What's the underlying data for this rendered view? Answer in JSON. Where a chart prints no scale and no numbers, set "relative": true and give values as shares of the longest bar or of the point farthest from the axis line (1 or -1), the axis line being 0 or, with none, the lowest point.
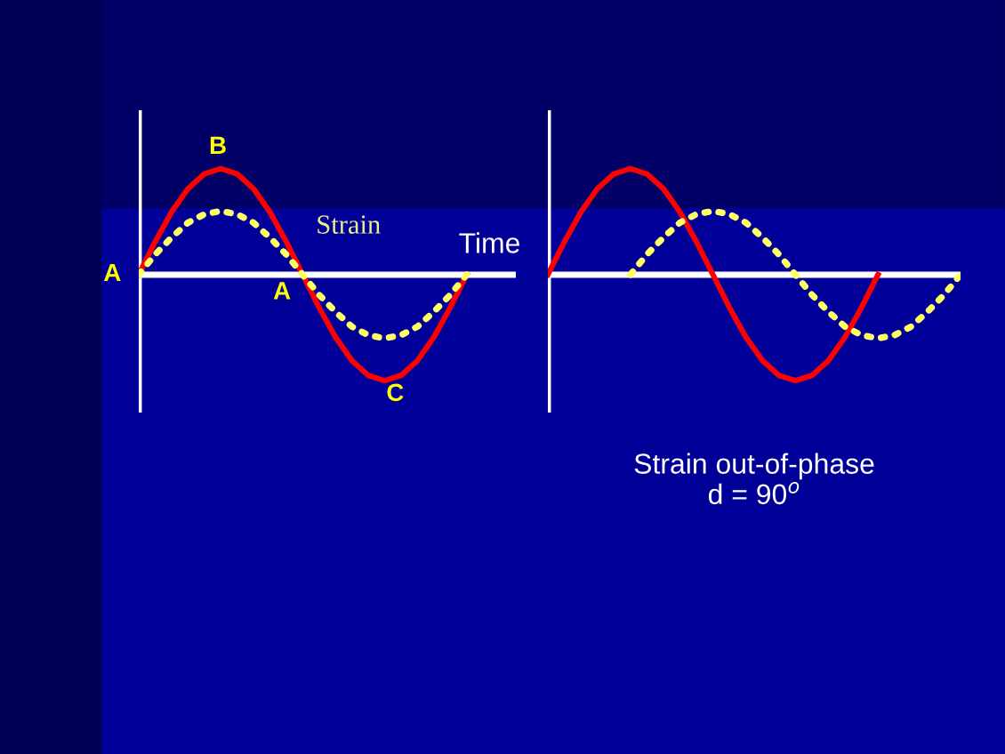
{
  "chart_data": [
    {
      "type": "line",
      "relative": true,
      "xlabel": "Time",
      "annotations": [
        "A",
        "B",
        "A",
        "C"
      ],
      "categories": [
        null,
        null,
        null,
        null,
        null,
        null,
        null,
        null,
        null,
        null,
        null,
        null,
        null,
        null,
        null,
        null,
        null,
        null,
        null,
        null,
        null,
        null,
        null,
        null
      ],
      "series": [
        {
          "color": "#ff0000",
          "line_style": "solid",
          "values": [
            0,
            0.31,
            0.59,
            0.81,
            0.95,
            1,
            0.95,
            0.81,
            0.59,
            0.31,
            0,
            -0.31,
            -0.59,
            -0.81,
            -0.95,
            -1,
            -0.95,
            -0.81,
            -0.59,
            -0.31,
            0,
            null,
            null,
            null
          ]
        },
        {
          "name": "Strain",
          "color": "#ffff66",
          "line_style": "dotted",
          "values": [
            0,
            0.19,
            0.35,
            0.49,
            0.57,
            0.6,
            0.57,
            0.49,
            0.35,
            0.19,
            0,
            -0.19,
            -0.35,
            -0.49,
            -0.57,
            -0.6,
            -0.57,
            -0.49,
            -0.35,
            -0.19,
            0,
            null,
            null,
            null
          ]
        }
      ]
    },
    {
      "type": "line",
      "relative": true,
      "annotations": [
        "Strain out-of-phase\nd = 90$^{o}$"
      ],
      "categories": [
        null,
        null,
        null,
        null,
        null,
        null,
        null,
        null,
        null,
        null,
        null,
        null,
        null,
        null,
        null,
        null,
        null,
        null,
        null,
        null,
        null,
        null,
        null,
        null,
        null,
        null
      ],
      "series": [
        {
          "color": "#ff0000",
          "line_style": "solid",
          "values": [
            0,
            0.31,
            0.59,
            0.81,
            0.95,
            1,
            0.95,
            0.81,
            0.59,
            0.31,
            0,
            -0.31,
            -0.59,
            -0.81,
            -0.95,
            -1,
            -0.95,
            -0.81,
            -0.59,
            -0.31,
            0,
            null,
            null,
            null,
            null,
            null
          ]
        },
        {
          "color": "#ffff66",
          "line_style": "dotted",
          "values": [
            null,
            null,
            null,
            null,
            null,
            0,
            0.19,
            0.35,
            0.49,
            0.57,
            0.6,
            0.57,
            0.49,
            0.35,
            0.19,
            0,
            -0.19,
            -0.35,
            -0.49,
            -0.57,
            -0.6,
            -0.57,
            -0.49,
            -0.35,
            -0.19,
            0
          ]
        }
      ]
    }
  ]
}
